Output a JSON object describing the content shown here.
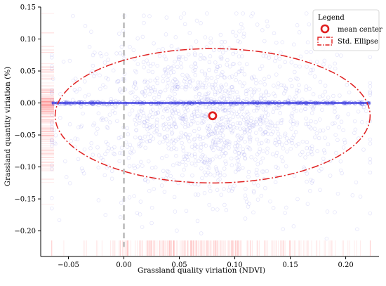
{
  "chart_data": {
    "type": "scatter",
    "xlabel": "Grassland quality viriation (NDVI)",
    "ylabel": "Grassland quantity viriation (%)",
    "xlim": [
      -0.075,
      0.23
    ],
    "ylim": [
      -0.24,
      0.15
    ],
    "x_ticks": [
      -0.05,
      0.0,
      0.05,
      0.1,
      0.15,
      0.2
    ],
    "x_tick_labels": [
      "−0.05",
      "0.00",
      "0.05",
      "0.10",
      "0.15",
      "0.20"
    ],
    "y_ticks": [
      0.15,
      0.1,
      0.05,
      0.0,
      -0.05,
      -0.1,
      -0.15,
      -0.2
    ],
    "y_tick_labels": [
      "0.15",
      "0.10",
      "0.05",
      "0.00",
      "−0.05",
      "−0.10",
      "−0.15",
      "−0.20"
    ],
    "grid": false,
    "legend": {
      "title": "Legend",
      "placement": "top-right",
      "entries": [
        {
          "label": "mean center",
          "marker": "circle"
        },
        {
          "label": "Std. Ellipse",
          "marker": "dash-dot"
        }
      ]
    },
    "mean_center": {
      "x": 0.08,
      "y": -0.02
    },
    "std_ellipse": {
      "center_x": 0.08,
      "center_y": -0.02,
      "half_width_x": 0.142,
      "half_height_y": 0.105
    },
    "reference_line_x": 0.0,
    "horizontal_cluster": {
      "y": 0.0,
      "x_min": -0.065,
      "x_max": 0.222
    },
    "scatter_extent": {
      "x_min": -0.065,
      "x_max": 0.222,
      "y_min": -0.23,
      "y_max": 0.14
    },
    "colors": {
      "points": "#7b7bea",
      "cluster_line": "#3b3be0",
      "ellipse": "#e02020",
      "mean_center": "#e02020",
      "reference_line": "#b8b8b8",
      "rug": "#ff3030"
    }
  }
}
